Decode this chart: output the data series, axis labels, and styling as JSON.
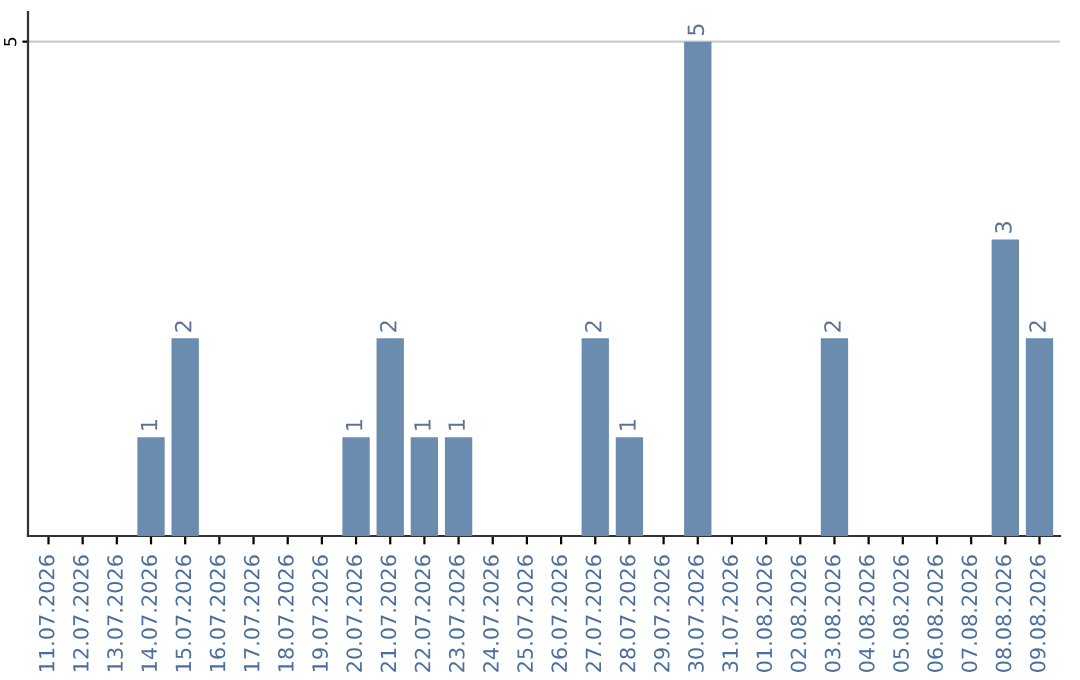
{
  "chart_data": {
    "type": "bar",
    "categories": [
      "11.07.2026",
      "12.07.2026",
      "13.07.2026",
      "14.07.2026",
      "15.07.2026",
      "16.07.2026",
      "17.07.2026",
      "18.07.2026",
      "19.07.2026",
      "20.07.2026",
      "21.07.2026",
      "22.07.2026",
      "23.07.2026",
      "24.07.2026",
      "25.07.2026",
      "26.07.2026",
      "27.07.2026",
      "28.07.2026",
      "29.07.2026",
      "30.07.2026",
      "31.07.2026",
      "01.08.2026",
      "02.08.2026",
      "03.08.2026",
      "04.08.2026",
      "05.08.2026",
      "06.08.2026",
      "07.08.2026",
      "08.08.2026",
      "09.08.2026"
    ],
    "values": [
      0,
      0,
      0,
      1,
      2,
      0,
      0,
      0,
      0,
      1,
      2,
      1,
      1,
      0,
      0,
      0,
      2,
      1,
      0,
      5,
      0,
      0,
      0,
      2,
      0,
      0,
      0,
      0,
      3,
      2
    ],
    "value_labels": [
      null,
      null,
      null,
      "1",
      "2",
      null,
      null,
      null,
      null,
      "1",
      "2",
      "1",
      "1",
      null,
      null,
      null,
      "2",
      "1",
      null,
      "5",
      null,
      null,
      null,
      "2",
      null,
      null,
      null,
      null,
      "3",
      "2"
    ],
    "color": "#6b8cae",
    "ylim": [
      0,
      5.3
    ],
    "yticks": [
      5
    ],
    "grid": "y",
    "legend": false
  }
}
